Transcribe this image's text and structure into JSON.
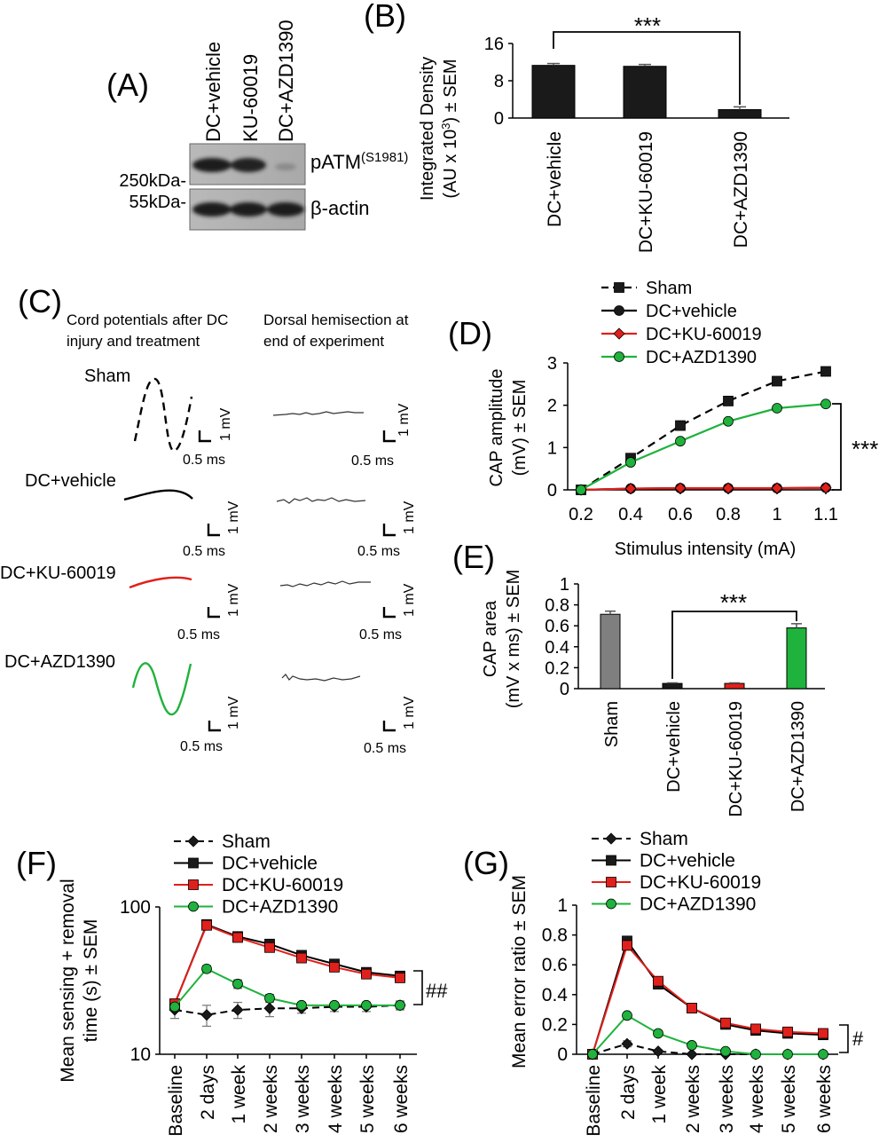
{
  "panel_labels": {
    "a": "(A)",
    "b": "(B)",
    "c": "(C)",
    "d": "(D)",
    "e": "(E)",
    "f": "(F)",
    "g": "(G)"
  },
  "panelA": {
    "lanes": [
      "DC+vehicle",
      "KU-60019",
      "DC+AZD1390"
    ],
    "size_top": "250kDa-",
    "size_bottom": "55kDa-",
    "band_top_main": "pATM",
    "band_top_sup": "(S1981)",
    "band_bottom": "β-actin"
  },
  "panelC": {
    "col1_line1": "Cord potentials after DC",
    "col1_line2": "injury and treatment",
    "col2_line1": "Dorsal hemisection at",
    "col2_line2": "end of experiment",
    "rows": [
      "Sham",
      "DC+vehicle",
      "DC+KU-60019",
      "DC+AZD1390"
    ],
    "scale_v": "1 mV",
    "scale_t": "0.5 ms",
    "trace_colors": [
      "#000000",
      "#000000",
      "#e0201b",
      "#1fb23c"
    ]
  },
  "colors": {
    "black": "#1a1a1a",
    "grey": "#7f7f7f",
    "red": "#e0201b",
    "green": "#1fb23c"
  },
  "chart_data": [
    {
      "id": "B",
      "type": "bar",
      "categories": [
        "DC+vehicle",
        "DC+KU-60019",
        "DC+AZD1390"
      ],
      "values": [
        11.3,
        11.1,
        1.8
      ],
      "errors": [
        0.4,
        0.4,
        0.6
      ],
      "ylabel_line1": "Integrated Density",
      "ylabel_line2a": "(AU x 10",
      "ylabel_sup": "3",
      "ylabel_line2b": ") ± SEM",
      "ylim": [
        0,
        16
      ],
      "yticks": [
        "0",
        "8",
        "16"
      ],
      "significance": "***"
    },
    {
      "id": "D",
      "type": "line",
      "x": [
        "0.2",
        "0.4",
        "0.6",
        "0.8",
        "1",
        "1.1"
      ],
      "xlabel": "Stimulus intensity (mA)",
      "ylabel_line1": "CAP amplitude",
      "ylabel_line2": "(mV) ± SEM",
      "ylim": [
        0,
        3
      ],
      "yticks": [
        "0",
        "1",
        "2",
        "3"
      ],
      "series": [
        {
          "name": "Sham",
          "values": [
            0,
            0.75,
            1.52,
            2.1,
            2.57,
            2.8
          ]
        },
        {
          "name": "DC+vehicle",
          "values": [
            0,
            0.03,
            0.04,
            0.04,
            0.04,
            0.05
          ]
        },
        {
          "name": "DC+KU-60019",
          "values": [
            0,
            0.03,
            0.04,
            0.04,
            0.04,
            0.05
          ]
        },
        {
          "name": "DC+AZD1390",
          "values": [
            0,
            0.65,
            1.15,
            1.62,
            1.93,
            2.03
          ]
        }
      ],
      "significance": "***"
    },
    {
      "id": "E",
      "type": "bar",
      "categories": [
        "Sham",
        "DC+vehicle",
        "DC+KU-60019",
        "DC+AZD1390"
      ],
      "values": [
        0.71,
        0.05,
        0.05,
        0.58
      ],
      "errors": [
        0.03,
        0.005,
        0.005,
        0.04
      ],
      "ylabel_line1": "CAP area",
      "ylabel_line2": "(mV x ms) ± SEM",
      "ylim": [
        0,
        1
      ],
      "yticks": [
        "0",
        "0.2",
        "0.4",
        "0.6",
        "0.8",
        "1"
      ],
      "significance": "***"
    },
    {
      "id": "F",
      "type": "line",
      "x": [
        "Baseline",
        "2 days",
        "1 week",
        "2 weeks",
        "3 weeks",
        "4 weeks",
        "5 weeks",
        "6 weeks"
      ],
      "ylabel_line1": "Mean sensing + removal",
      "ylabel_line2": "time (s) ± SEM",
      "ylim": [
        10,
        100
      ],
      "yscale": "log",
      "yticks": [
        "10",
        "100"
      ],
      "series": [
        {
          "name": "Sham",
          "values": [
            20,
            18.5,
            20,
            20.5,
            20.5,
            21,
            21,
            21.5
          ],
          "errors": [
            2.5,
            3,
            2.5,
            2.5,
            1.5,
            1.5,
            1.5,
            1.5
          ]
        },
        {
          "name": "DC+vehicle",
          "values": [
            22,
            76,
            63,
            56,
            47,
            41,
            36,
            34
          ],
          "errors": [
            1,
            3,
            2,
            2,
            2,
            2,
            2,
            2
          ]
        },
        {
          "name": "DC+KU-60019",
          "values": [
            22,
            75,
            62,
            53,
            45,
            39,
            35,
            33
          ],
          "errors": [
            1,
            3,
            2,
            2,
            2,
            2,
            2,
            2
          ]
        },
        {
          "name": "DC+AZD1390",
          "values": [
            21,
            38,
            30,
            24,
            21.5,
            21.5,
            21.5,
            21.5
          ],
          "errors": [
            1,
            2,
            2,
            1.5,
            1,
            1,
            1,
            1
          ]
        }
      ],
      "significance": "##"
    },
    {
      "id": "G",
      "type": "line",
      "x": [
        "Baseline",
        "2 days",
        "1 week",
        "2 weeks",
        "3 weeks",
        "4 weeks",
        "5 weeks",
        "6 weeks"
      ],
      "ylabel": "Mean error ratio ± SEM",
      "ylim": [
        0,
        1
      ],
      "yticks": [
        "0",
        "0.2",
        "0.4",
        "0.6",
        "0.8",
        "1"
      ],
      "series": [
        {
          "name": "Sham",
          "values": [
            0,
            0.07,
            0.02,
            0,
            0,
            0,
            0,
            0
          ],
          "errors": [
            0,
            0.02,
            0.01,
            0,
            0,
            0,
            0,
            0
          ]
        },
        {
          "name": "DC+vehicle",
          "values": [
            0,
            0.76,
            0.47,
            0.31,
            0.2,
            0.16,
            0.14,
            0.13
          ],
          "errors": [
            0,
            0.02,
            0.03,
            0.02,
            0.02,
            0.01,
            0.01,
            0.01
          ]
        },
        {
          "name": "DC+KU-60019",
          "values": [
            0,
            0.73,
            0.49,
            0.31,
            0.21,
            0.17,
            0.15,
            0.14
          ],
          "errors": [
            0,
            0.02,
            0.03,
            0.02,
            0.02,
            0.01,
            0.01,
            0.01
          ]
        },
        {
          "name": "DC+AZD1390",
          "values": [
            0,
            0.26,
            0.14,
            0.06,
            0.02,
            0,
            0,
            0
          ],
          "errors": [
            0,
            0.01,
            0.01,
            0.01,
            0.01,
            0,
            0,
            0
          ]
        }
      ],
      "significance": "#"
    }
  ]
}
